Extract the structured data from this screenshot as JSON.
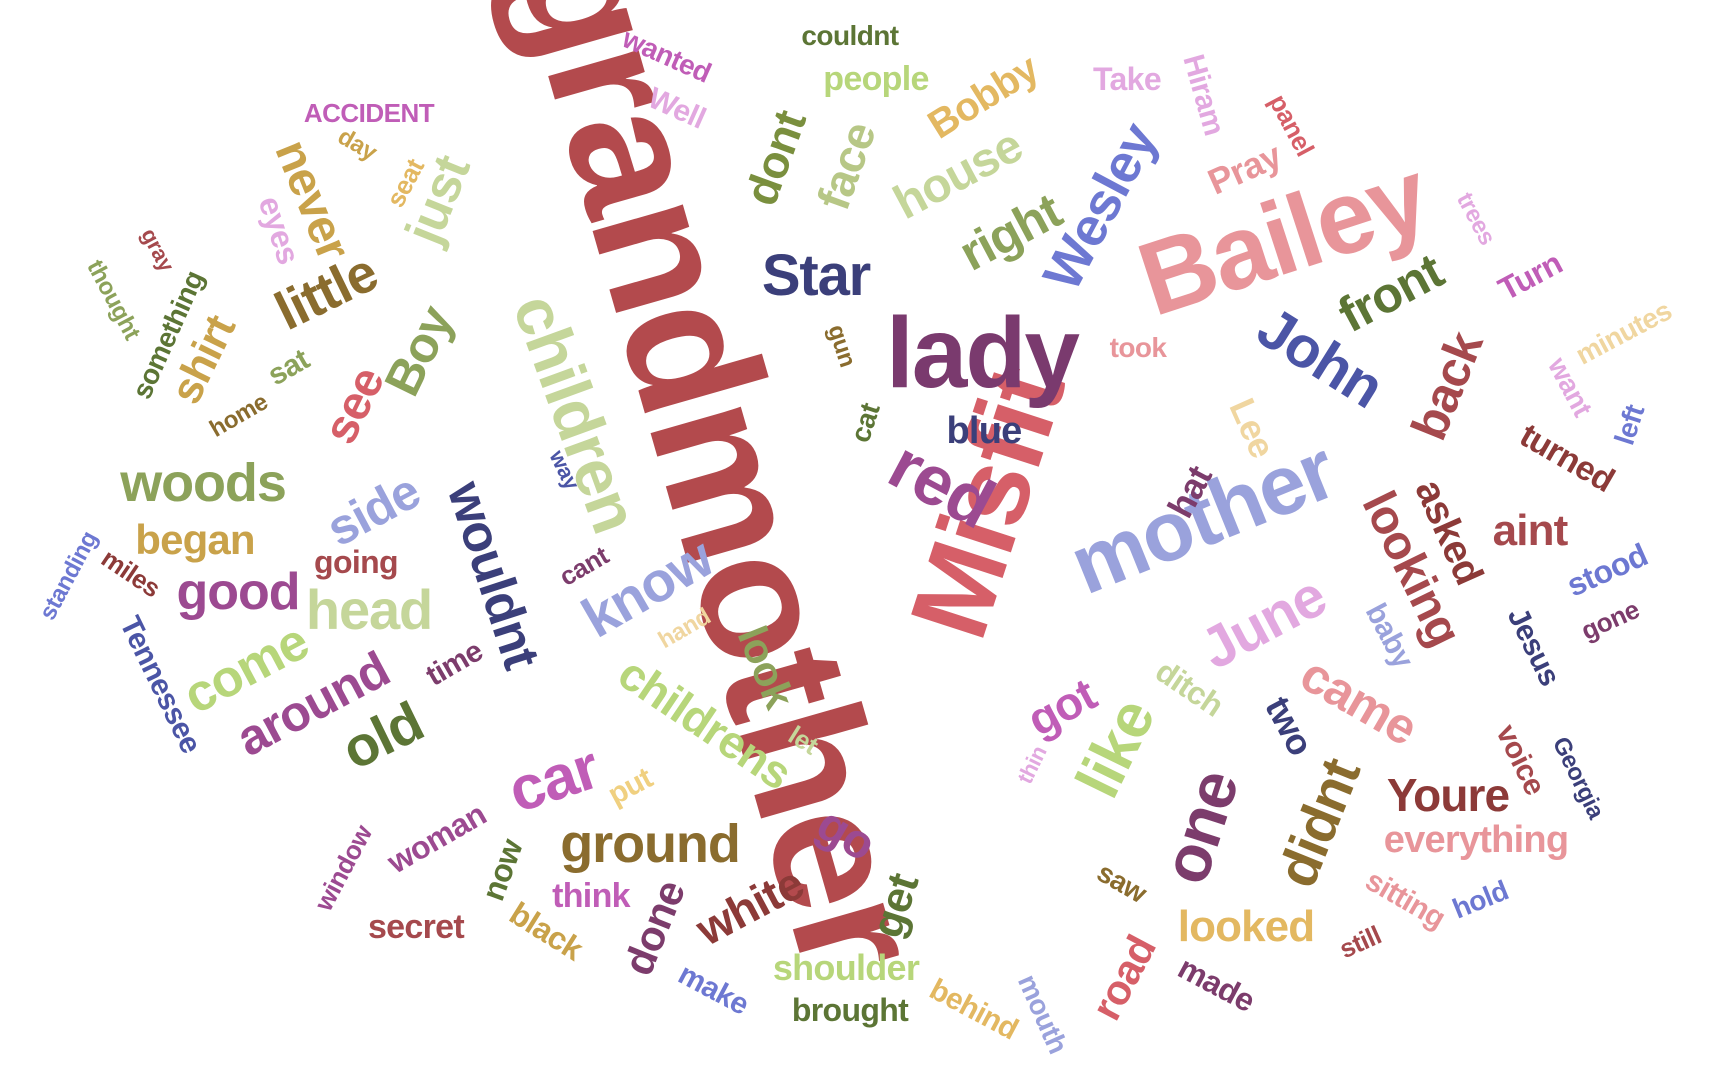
{
  "words": [
    {
      "text": "grandmother",
      "color": "#b34a4d"
    },
    {
      "text": "Misfit",
      "color": "#d65f68"
    },
    {
      "text": "Bailey",
      "color": "#e8959a"
    },
    {
      "text": "lady",
      "color": "#7a3a6e"
    },
    {
      "text": "mother",
      "color": "#9aa2dc"
    },
    {
      "text": "children",
      "color": "#c5d69a"
    },
    {
      "text": "Star",
      "color": "#3b3f7a"
    },
    {
      "text": "red",
      "color": "#9c4a91"
    },
    {
      "text": "John",
      "color": "#4b55a6"
    },
    {
      "text": "Wesley",
      "color": "#6d78d2"
    },
    {
      "text": "June",
      "color": "#e2a8e0"
    },
    {
      "text": "like",
      "color": "#b7d67a"
    },
    {
      "text": "one",
      "color": "#7c3c6c"
    },
    {
      "text": "car",
      "color": "#c05db7"
    },
    {
      "text": "childrens",
      "color": "#b7d67a"
    },
    {
      "text": "back",
      "color": "#a5494d"
    },
    {
      "text": "front",
      "color": "#5c7535"
    },
    {
      "text": "right",
      "color": "#8ca25a"
    },
    {
      "text": "house",
      "color": "#c5d69a"
    },
    {
      "text": "face",
      "color": "#b7c786"
    },
    {
      "text": "dont",
      "color": "#7a8f3e"
    },
    {
      "text": "Bobby",
      "color": "#e3b861"
    },
    {
      "text": "people",
      "color": "#b7d67a"
    },
    {
      "text": "couldnt",
      "color": "#5c7535"
    },
    {
      "text": "wanted",
      "color": "#c05db7"
    },
    {
      "text": "Well",
      "color": "#e2a8e0"
    },
    {
      "text": "ACCIDENT",
      "color": "#c05db7"
    },
    {
      "text": "Take",
      "color": "#e2a8e0"
    },
    {
      "text": "Hiram",
      "color": "#e2a8e0"
    },
    {
      "text": "panel",
      "color": "#d65f68"
    },
    {
      "text": "Pray",
      "color": "#e8959a"
    },
    {
      "text": "trees",
      "color": "#e2a8e0"
    },
    {
      "text": "Turn",
      "color": "#c05db7"
    },
    {
      "text": "minutes",
      "color": "#f0d6a0"
    },
    {
      "text": "want",
      "color": "#e2a8e0"
    },
    {
      "text": "left",
      "color": "#6d78d2"
    },
    {
      "text": "turned",
      "color": "#8c3a38"
    },
    {
      "text": "took",
      "color": "#e8959a"
    },
    {
      "text": "Lee",
      "color": "#f0d6a0"
    },
    {
      "text": "looking",
      "color": "#a5494d"
    },
    {
      "text": "asked",
      "color": "#8c3a38"
    },
    {
      "text": "aint",
      "color": "#a5494d"
    },
    {
      "text": "stood",
      "color": "#6d78d2"
    },
    {
      "text": "gone",
      "color": "#7c3c6c"
    },
    {
      "text": "Jesus",
      "color": "#3b3f7a"
    },
    {
      "text": "baby",
      "color": "#9aa2dc"
    },
    {
      "text": "came",
      "color": "#e8959a"
    },
    {
      "text": "two",
      "color": "#3b3f7a"
    },
    {
      "text": "voice",
      "color": "#a5494d"
    },
    {
      "text": "Georgia",
      "color": "#3b3f7a"
    },
    {
      "text": "Youre",
      "color": "#8c3a38"
    },
    {
      "text": "didnt",
      "color": "#8a6c2e"
    },
    {
      "text": "everything",
      "color": "#e8959a"
    },
    {
      "text": "sitting",
      "color": "#e8959a"
    },
    {
      "text": "hold",
      "color": "#6d78d2"
    },
    {
      "text": "still",
      "color": "#a5494d"
    },
    {
      "text": "made",
      "color": "#7c3c6c"
    },
    {
      "text": "road",
      "color": "#d65f68"
    },
    {
      "text": "saw",
      "color": "#8a6c2e"
    },
    {
      "text": "looked",
      "color": "#e3b861"
    },
    {
      "text": "mouth",
      "color": "#9aa2dc"
    },
    {
      "text": "behind",
      "color": "#e3b861"
    },
    {
      "text": "brought",
      "color": "#5c7535"
    },
    {
      "text": "shoulder",
      "color": "#b7d67a"
    },
    {
      "text": "get",
      "color": "#5c7535"
    },
    {
      "text": "make",
      "color": "#6d78d2"
    },
    {
      "text": "white",
      "color": "#8c3a38"
    },
    {
      "text": "done",
      "color": "#7c3c6c"
    },
    {
      "text": "think",
      "color": "#c05db7"
    },
    {
      "text": "black",
      "color": "#c9a24a"
    },
    {
      "text": "secret",
      "color": "#a5494d"
    },
    {
      "text": "now",
      "color": "#5c7535"
    },
    {
      "text": "woman",
      "color": "#9c4a91"
    },
    {
      "text": "window",
      "color": "#9c4a91"
    },
    {
      "text": "ground",
      "color": "#8a6c2e"
    },
    {
      "text": "put",
      "color": "#f0d080"
    },
    {
      "text": "thin",
      "color": "#e2a8e0"
    },
    {
      "text": "let",
      "color": "#c5d69a"
    },
    {
      "text": "go",
      "color": "#9c4a91"
    },
    {
      "text": "got",
      "color": "#c05db7"
    },
    {
      "text": "ditch",
      "color": "#c5d69a"
    },
    {
      "text": "look",
      "color": "#8ca25a"
    },
    {
      "text": "hand",
      "color": "#f0d6a0"
    },
    {
      "text": "know",
      "color": "#9aa2dc"
    },
    {
      "text": "cant",
      "color": "#7c3c6c"
    },
    {
      "text": "way",
      "color": "#4b55a6"
    },
    {
      "text": "cat",
      "color": "#5c7535"
    },
    {
      "text": "gun",
      "color": "#8a6c2e"
    },
    {
      "text": "blue",
      "color": "#3b3f7a"
    },
    {
      "text": "hat",
      "color": "#7c3c6c"
    },
    {
      "text": "wouldnt",
      "color": "#3b3f7a"
    },
    {
      "text": "side",
      "color": "#9aa2dc"
    },
    {
      "text": "see",
      "color": "#d65f68"
    },
    {
      "text": "Boy",
      "color": "#8ca25a"
    },
    {
      "text": "just",
      "color": "#c5d69a"
    },
    {
      "text": "little",
      "color": "#8a6c2e"
    },
    {
      "text": "never",
      "color": "#c9a24a"
    },
    {
      "text": "day",
      "color": "#c9a24a"
    },
    {
      "text": "seat",
      "color": "#e3b861"
    },
    {
      "text": "eyes",
      "color": "#e2a8e0"
    },
    {
      "text": "gray",
      "color": "#a5494d"
    },
    {
      "text": "thought",
      "color": "#8ca25a"
    },
    {
      "text": "something",
      "color": "#5c7535"
    },
    {
      "text": "shirt",
      "color": "#c9a24a"
    },
    {
      "text": "sat",
      "color": "#8ca25a"
    },
    {
      "text": "home",
      "color": "#8a6c2e"
    },
    {
      "text": "woods",
      "color": "#8ca25a"
    },
    {
      "text": "began",
      "color": "#c9a24a"
    },
    {
      "text": "good",
      "color": "#9c4a91"
    },
    {
      "text": "head",
      "color": "#c5d69a"
    },
    {
      "text": "going",
      "color": "#a5494d"
    },
    {
      "text": "come",
      "color": "#b7d67a"
    },
    {
      "text": "around",
      "color": "#9c4a91"
    },
    {
      "text": "old",
      "color": "#5c7535"
    },
    {
      "text": "time",
      "color": "#7c3c6c"
    },
    {
      "text": "miles",
      "color": "#8c3a38"
    },
    {
      "text": "standing",
      "color": "#6d78d2"
    },
    {
      "text": "Tennessee",
      "color": "#4b55a6"
    }
  ]
}
